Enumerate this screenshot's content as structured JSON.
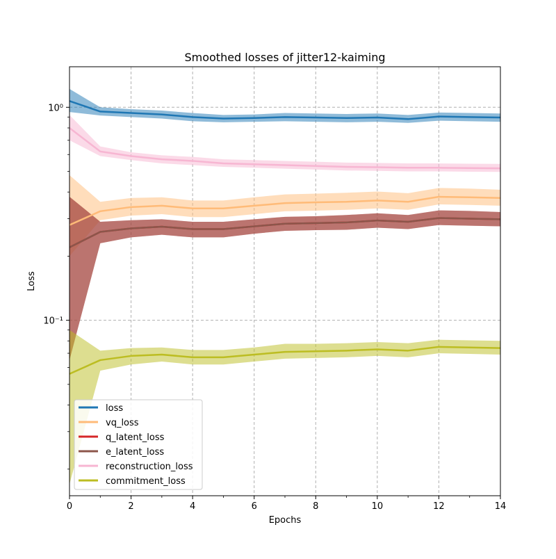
{
  "chart_data": {
    "type": "line",
    "title": "Smoothed losses of jitter12-kaiming",
    "xlabel": "Epochs",
    "ylabel": "Loss",
    "x_scale": "linear",
    "y_scale": "log",
    "xlim": [
      0,
      14
    ],
    "ylim": [
      0.015,
      1.55
    ],
    "x_ticks": [
      0,
      2,
      4,
      6,
      8,
      10,
      12,
      14
    ],
    "x_tick_labels": [
      "0",
      "2",
      "4",
      "6",
      "8",
      "10",
      "12",
      "14"
    ],
    "y_ticks": [
      0.1,
      1
    ],
    "y_tick_labels": [
      "10⁻¹",
      "10⁰"
    ],
    "grid": true,
    "legend_position": "lower-left",
    "x": [
      0,
      1,
      2,
      3,
      4,
      5,
      6,
      7,
      8,
      9,
      10,
      11,
      12,
      13,
      14
    ],
    "series": [
      {
        "name": "loss",
        "color": "#1f77b4",
        "values": [
          1.07,
          0.955,
          0.94,
          0.925,
          0.9,
          0.885,
          0.89,
          0.9,
          0.895,
          0.89,
          0.895,
          0.88,
          0.905,
          0.9,
          0.895
        ],
        "lower": [
          0.95,
          0.915,
          0.9,
          0.885,
          0.86,
          0.85,
          0.855,
          0.86,
          0.855,
          0.85,
          0.855,
          0.845,
          0.865,
          0.86,
          0.855
        ],
        "upper": [
          1.22,
          1.0,
          0.98,
          0.965,
          0.94,
          0.92,
          0.925,
          0.94,
          0.935,
          0.93,
          0.935,
          0.92,
          0.945,
          0.94,
          0.935
        ]
      },
      {
        "name": "vq_loss",
        "color": "#ffbb78",
        "values": [
          0.28,
          0.325,
          0.34,
          0.345,
          0.335,
          0.335,
          0.345,
          0.355,
          0.358,
          0.36,
          0.365,
          0.36,
          0.38,
          0.378,
          0.375
        ],
        "lower": [
          0.2,
          0.295,
          0.31,
          0.315,
          0.305,
          0.305,
          0.315,
          0.325,
          0.327,
          0.33,
          0.335,
          0.33,
          0.35,
          0.348,
          0.345
        ],
        "upper": [
          0.48,
          0.36,
          0.375,
          0.378,
          0.365,
          0.365,
          0.378,
          0.39,
          0.393,
          0.397,
          0.402,
          0.395,
          0.418,
          0.415,
          0.41
        ]
      },
      {
        "name": "q_latent_loss",
        "color": "#d62728",
        "values": [
          0.22,
          0.26,
          0.27,
          0.275,
          0.268,
          0.268,
          0.276,
          0.284,
          0.286,
          0.288,
          0.294,
          0.29,
          0.302,
          0.3,
          0.298
        ],
        "lower": [
          0.065,
          0.23,
          0.245,
          0.252,
          0.245,
          0.245,
          0.255,
          0.263,
          0.265,
          0.266,
          0.272,
          0.268,
          0.28,
          0.278,
          0.276
        ],
        "upper": [
          0.38,
          0.29,
          0.295,
          0.298,
          0.29,
          0.29,
          0.298,
          0.306,
          0.308,
          0.312,
          0.318,
          0.312,
          0.328,
          0.326,
          0.322
        ]
      },
      {
        "name": "e_latent_loss",
        "color": "#8c564b",
        "values": [
          0.22,
          0.26,
          0.27,
          0.275,
          0.268,
          0.268,
          0.276,
          0.284,
          0.286,
          0.288,
          0.294,
          0.29,
          0.302,
          0.3,
          0.298
        ],
        "lower": [
          0.065,
          0.23,
          0.245,
          0.252,
          0.245,
          0.245,
          0.255,
          0.263,
          0.265,
          0.266,
          0.272,
          0.268,
          0.28,
          0.278,
          0.276
        ],
        "upper": [
          0.38,
          0.29,
          0.295,
          0.298,
          0.29,
          0.29,
          0.298,
          0.306,
          0.308,
          0.312,
          0.318,
          0.312,
          0.328,
          0.326,
          0.322
        ]
      },
      {
        "name": "reconstruction_loss",
        "color": "#f7b6d2",
        "values": [
          0.8,
          0.62,
          0.59,
          0.57,
          0.56,
          0.545,
          0.54,
          0.535,
          0.53,
          0.525,
          0.523,
          0.52,
          0.52,
          0.518,
          0.517
        ],
        "lower": [
          0.7,
          0.59,
          0.565,
          0.545,
          0.535,
          0.525,
          0.52,
          0.515,
          0.51,
          0.505,
          0.503,
          0.5,
          0.5,
          0.498,
          0.497
        ],
        "upper": [
          0.92,
          0.655,
          0.615,
          0.595,
          0.585,
          0.57,
          0.565,
          0.56,
          0.555,
          0.55,
          0.548,
          0.545,
          0.545,
          0.543,
          0.542
        ]
      },
      {
        "name": "commitment_loss",
        "color": "#bcbd22",
        "values": [
          0.056,
          0.065,
          0.068,
          0.069,
          0.067,
          0.067,
          0.069,
          0.071,
          0.0715,
          0.072,
          0.073,
          0.072,
          0.075,
          0.0745,
          0.074
        ],
        "lower": [
          0.017,
          0.058,
          0.062,
          0.064,
          0.062,
          0.062,
          0.064,
          0.066,
          0.0665,
          0.067,
          0.068,
          0.067,
          0.07,
          0.0695,
          0.069
        ],
        "upper": [
          0.09,
          0.072,
          0.074,
          0.0745,
          0.0725,
          0.0725,
          0.0745,
          0.0775,
          0.0775,
          0.078,
          0.079,
          0.078,
          0.081,
          0.0805,
          0.08
        ]
      }
    ]
  }
}
